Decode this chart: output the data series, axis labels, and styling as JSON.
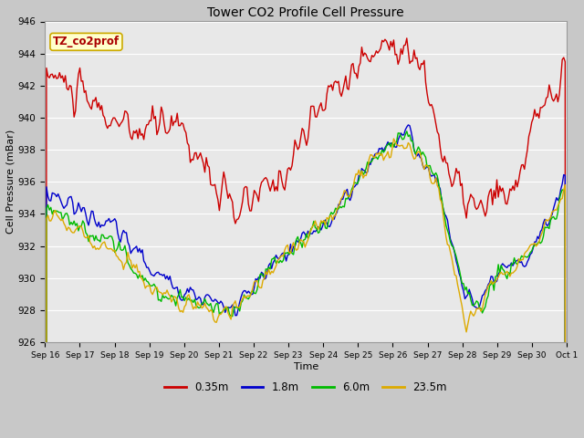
{
  "title": "Tower CO2 Profile Cell Pressure",
  "xlabel": "Time",
  "ylabel": "Cell Pressure (mBar)",
  "ylim": [
    926,
    946
  ],
  "yticks": [
    926,
    928,
    930,
    932,
    934,
    936,
    938,
    940,
    942,
    944,
    946
  ],
  "line_colors": {
    "0.35m": "#cc0000",
    "1.8m": "#0000cc",
    "6.0m": "#00bb00",
    "23.5m": "#ddaa00"
  },
  "line_widths": {
    "0.35m": 1.0,
    "1.8m": 1.0,
    "6.0m": 1.0,
    "23.5m": 1.0
  },
  "legend_label": "TZ_co2prof",
  "legend_box_color": "#ffffcc",
  "legend_box_edge": "#ccaa00",
  "legend_text_color": "#aa0000",
  "plot_bg_color": "#e8e8e8",
  "fig_bg_color": "#c8c8c8",
  "grid_color": "#ffffff",
  "xtick_labels": [
    "Sep 16",
    "Sep 17",
    "Sep 18",
    "Sep 19",
    "Sep 20",
    "Sep 21",
    "Sep 22",
    "Sep 23",
    "Sep 24",
    "Sep 25",
    "Sep 26",
    "Sep 27",
    "Sep 28",
    "Sep 29",
    "Sep 30",
    "Oct 1"
  ],
  "n_pts": 360
}
